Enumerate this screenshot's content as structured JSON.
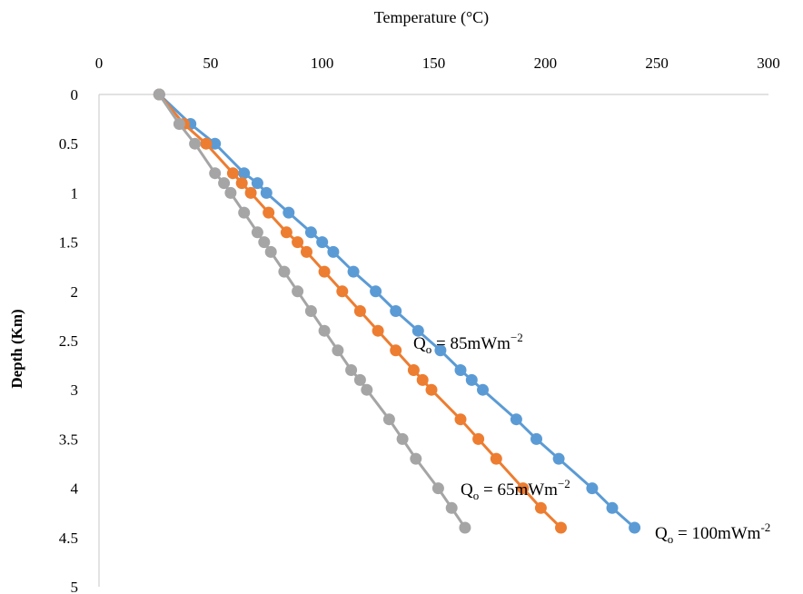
{
  "chart_data": {
    "type": "line",
    "xlabel": "Temperature (°C)",
    "ylabel": "Depth (Km)",
    "xlim": [
      0,
      300
    ],
    "ylim": [
      0,
      5
    ],
    "x_ticks": [
      "0",
      "50",
      "100",
      "150",
      "200",
      "250",
      "300"
    ],
    "y_ticks": [
      "0",
      "0.5",
      "1",
      "1.5",
      "2",
      "2.5",
      "3",
      "3.5",
      "4",
      "4.5",
      "5"
    ],
    "x_axis_position": "top",
    "y_axis_inverted": true,
    "grid": false,
    "series": [
      {
        "color": "#5b9bd5",
        "points": [
          [
            27,
            0
          ],
          [
            41,
            0.3
          ],
          [
            52,
            0.5
          ],
          [
            65,
            0.8
          ],
          [
            71,
            0.9
          ],
          [
            75,
            1.0
          ],
          [
            85,
            1.2
          ],
          [
            95,
            1.4
          ],
          [
            100,
            1.5
          ],
          [
            105,
            1.6
          ],
          [
            114,
            1.8
          ],
          [
            124,
            2.0
          ],
          [
            133,
            2.2
          ],
          [
            143,
            2.4
          ],
          [
            153,
            2.6
          ],
          [
            162,
            2.8
          ],
          [
            167,
            2.9
          ],
          [
            172,
            3.0
          ],
          [
            187,
            3.3
          ],
          [
            196,
            3.5
          ],
          [
            206,
            3.7
          ],
          [
            221,
            4.0
          ],
          [
            230,
            4.2
          ],
          [
            240,
            4.4
          ]
        ]
      },
      {
        "color": "#ed7d31",
        "points": [
          [
            27,
            0
          ],
          [
            38,
            0.3
          ],
          [
            48,
            0.5
          ],
          [
            60,
            0.8
          ],
          [
            64,
            0.9
          ],
          [
            68,
            1.0
          ],
          [
            76,
            1.2
          ],
          [
            84,
            1.4
          ],
          [
            89,
            1.5
          ],
          [
            93,
            1.6
          ],
          [
            101,
            1.8
          ],
          [
            109,
            2.0
          ],
          [
            117,
            2.2
          ],
          [
            125,
            2.4
          ],
          [
            133,
            2.6
          ],
          [
            141,
            2.8
          ],
          [
            145,
            2.9
          ],
          [
            149,
            3.0
          ],
          [
            162,
            3.3
          ],
          [
            170,
            3.5
          ],
          [
            178,
            3.7
          ],
          [
            190,
            4.0
          ],
          [
            198,
            4.2
          ],
          [
            207,
            4.4
          ]
        ]
      },
      {
        "color": "#a5a5a5",
        "points": [
          [
            27,
            0
          ],
          [
            36,
            0.3
          ],
          [
            43,
            0.5
          ],
          [
            52,
            0.8
          ],
          [
            56,
            0.9
          ],
          [
            59,
            1.0
          ],
          [
            65,
            1.2
          ],
          [
            71,
            1.4
          ],
          [
            74,
            1.5
          ],
          [
            77,
            1.6
          ],
          [
            83,
            1.8
          ],
          [
            89,
            2.0
          ],
          [
            95,
            2.2
          ],
          [
            101,
            2.4
          ],
          [
            107,
            2.6
          ],
          [
            113,
            2.8
          ],
          [
            117,
            2.9
          ],
          [
            120,
            3.0
          ],
          [
            130,
            3.3
          ],
          [
            136,
            3.5
          ],
          [
            142,
            3.7
          ],
          [
            152,
            4.0
          ],
          [
            158,
            4.2
          ],
          [
            164,
            4.4
          ]
        ]
      }
    ],
    "annotations": [
      {
        "base": "Q",
        "sub": "o",
        "text": " = 85mWm",
        "sup": "−2"
      },
      {
        "base": "Q",
        "sub": "o",
        "text": " = 65mWm",
        "sup": "−2"
      },
      {
        "base": "Q",
        "sub": "o",
        "text": " = 100mWm",
        "sup": "-2"
      }
    ]
  }
}
